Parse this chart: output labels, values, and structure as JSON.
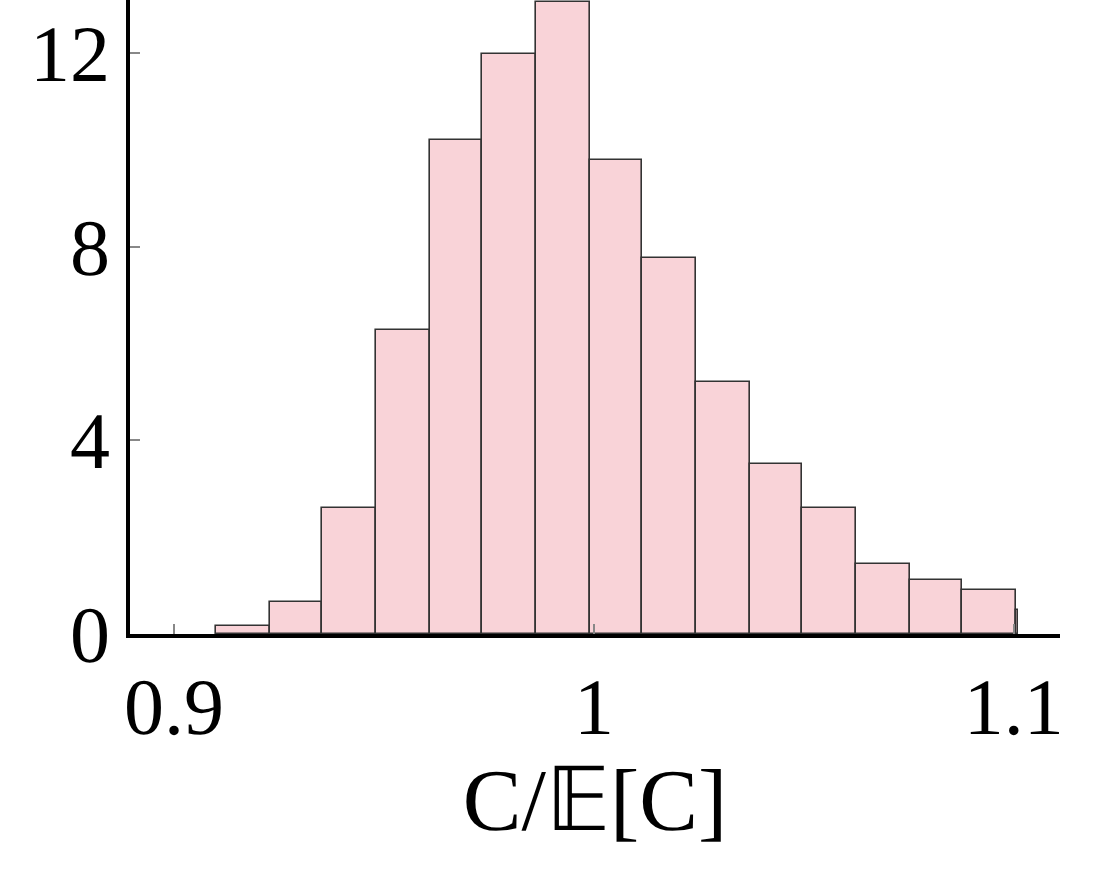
{
  "chart_data": {
    "type": "histogram",
    "xlabel": "C/𝔼[C]",
    "bins": [
      0.91,
      0.9227,
      0.9354,
      0.9481,
      0.9608,
      0.9735,
      0.9862,
      0.9989,
      1.0116,
      1.0243,
      1.037,
      1.0497,
      1.0624,
      1.0751,
      1.0878,
      1.1005,
      1.101
    ],
    "values": [
      0.17,
      0.68,
      2.6,
      6.3,
      10.2,
      12.0,
      13.05,
      9.8,
      7.75,
      5.2,
      3.5,
      2.6,
      1.45,
      1.12,
      0.93,
      0.5
    ],
    "color": "#f9d3d8",
    "xlim": [
      0.8895,
      1.111
    ],
    "ylim": [
      0,
      13.1
    ],
    "xticks": [
      0.9,
      1,
      1.1
    ],
    "yticks": [
      0,
      4,
      8,
      12
    ]
  }
}
